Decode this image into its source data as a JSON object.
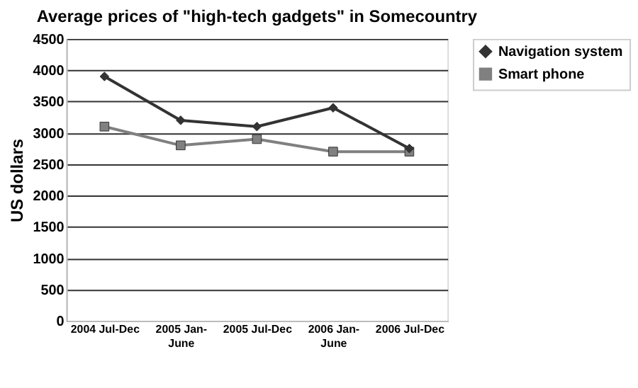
{
  "chart_data": {
    "type": "line",
    "title": "Average prices of \"high-tech gadgets\" in Somecountry",
    "ylabel": "US dollars",
    "categories": [
      "2004 Jul-Dec",
      "2005 Jan-June",
      "2005 Jul-Dec",
      "2006 Jan-June",
      "2006 Jul-Dec"
    ],
    "series": [
      {
        "name": "Navigation system",
        "color": "#333333",
        "marker": "diamond",
        "values": [
          3900,
          3200,
          3100,
          3400,
          2750
        ]
      },
      {
        "name": "Smart phone",
        "color": "#808080",
        "marker": "square",
        "values": [
          3100,
          2800,
          2900,
          2700,
          2700
        ]
      }
    ],
    "ylim": [
      0,
      4500
    ],
    "yticks": [
      0,
      500,
      1000,
      1500,
      2000,
      2500,
      3000,
      3500,
      4000,
      4500
    ],
    "grid": "y",
    "legend": "right",
    "line_style": "solid"
  }
}
